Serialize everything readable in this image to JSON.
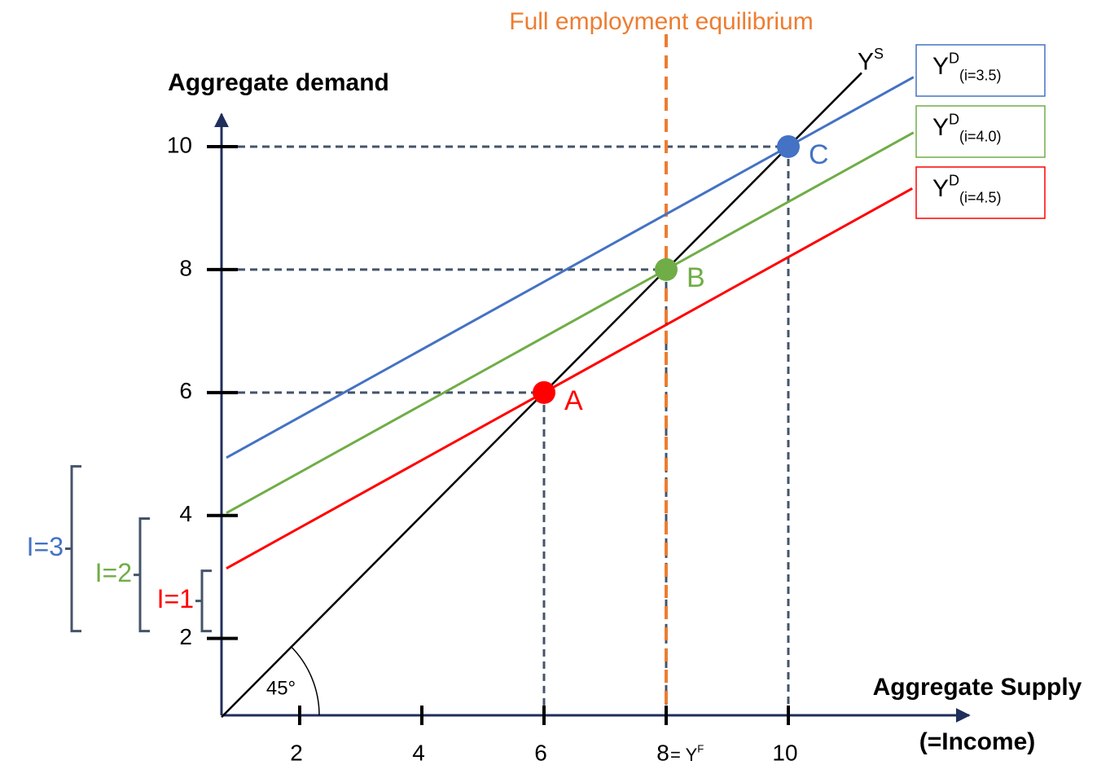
{
  "chart_data": {
    "type": "line",
    "y_label": "Aggregate demand",
    "x_label": "Aggregate Supply",
    "x_label_sub": "(=Income)",
    "xlim": [
      0.72,
      12.96
    ],
    "ylim": [
      0.75,
      10.53
    ],
    "xticks": [
      2,
      4,
      6,
      8,
      10
    ],
    "yticks": [
      2,
      4,
      6,
      8,
      10
    ],
    "xtick_note": {
      "base": "= Y",
      "sup": "F"
    },
    "legend": "upper right",
    "series": [
      {
        "name": "Y",
        "sup": "S",
        "color": "#000000",
        "x": [
          0.72,
          11.2
        ],
        "values": [
          0.72,
          11.2
        ]
      },
      {
        "name": "Y",
        "sup": "D",
        "sub": "(i=3.5)",
        "color": "#4472c4",
        "x": [
          0.8,
          12.05
        ],
        "values": [
          4.94,
          11.13
        ]
      },
      {
        "name": "Y",
        "sup": "D",
        "sub": "(i=4.0)",
        "color": "#70ad47",
        "x": [
          0.8,
          12.05
        ],
        "values": [
          4.04,
          10.23
        ]
      },
      {
        "name": "Y",
        "sup": "D",
        "sub": "(i=4.5)",
        "color": "#ff0000",
        "x": [
          0.8,
          12.03
        ],
        "values": [
          3.14,
          9.32
        ]
      }
    ],
    "points": [
      {
        "label": "A",
        "x": 6,
        "y": 6,
        "color": "#ff0000"
      },
      {
        "label": "B",
        "x": 8,
        "y": 8,
        "color": "#70ad47"
      },
      {
        "label": "C",
        "x": 10,
        "y": 10,
        "color": "#4472c4"
      }
    ],
    "vline": {
      "x": 8,
      "label": "Full employment equilibrium",
      "color": "#ed7d31"
    },
    "angle_label": "45°",
    "brackets": [
      {
        "label": "I=3",
        "from": 2.12,
        "to": 4.8,
        "color": "#4472c4"
      },
      {
        "label": "I=2",
        "from": 2.12,
        "to": 3.95,
        "color": "#70ad47"
      },
      {
        "label": "I=1",
        "from": 2.12,
        "to": 3.1,
        "color": "#ff0000"
      }
    ]
  }
}
